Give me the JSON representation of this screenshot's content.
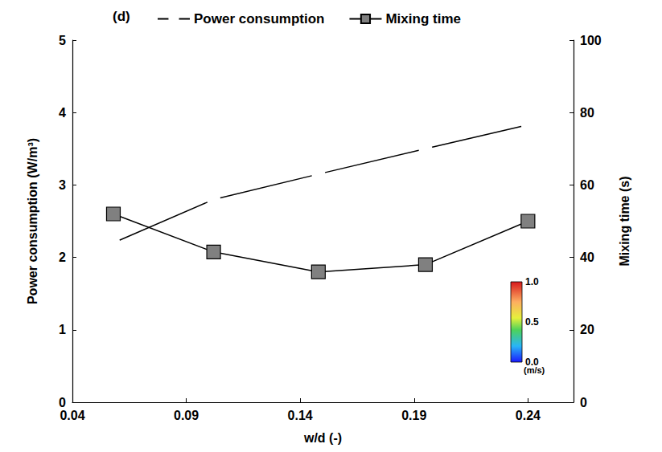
{
  "chart_data": {
    "type": "line",
    "panel_label": "(d)",
    "x_label": "w/d (-)",
    "y_label": "Power consumption (W/m³)",
    "y2_label": "Mixing time (s)",
    "x": [
      0.058,
      0.102,
      0.148,
      0.195,
      0.24
    ],
    "xlim": [
      0.04,
      0.26
    ],
    "xticks": [
      0.04,
      0.09,
      0.14,
      0.19,
      0.24
    ],
    "ylim": [
      0,
      5
    ],
    "yticks": [
      0,
      1,
      2,
      3,
      4,
      5
    ],
    "y2lim": [
      0,
      100
    ],
    "y2ticks": [
      0,
      20,
      40,
      60,
      80,
      100
    ],
    "grid": false,
    "legend": "top",
    "series": [
      {
        "name": "Power consumption",
        "color": "#000000",
        "marker": "circle",
        "values": [
          2.2,
          2.8,
          3.15,
          3.5,
          3.83
        ]
      },
      {
        "name": "Mixing time",
        "color": "#808080",
        "marker": "square",
        "axis": "y2",
        "values": [
          52,
          41.5,
          36,
          38,
          50
        ]
      }
    ],
    "colorbar": {
      "range": [
        0,
        1
      ],
      "ticks": [
        {
          "value": 0,
          "label": "0.0"
        },
        {
          "value": 0.5,
          "label": "0.5"
        },
        {
          "value": 1,
          "label": "1.0"
        }
      ],
      "unit": "(m/s)"
    }
  }
}
